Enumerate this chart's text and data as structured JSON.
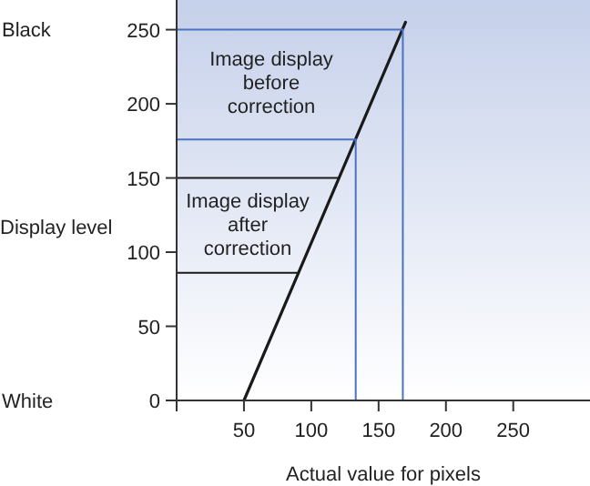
{
  "chart_data": {
    "type": "line",
    "xlabel": "Actual value for pixels",
    "ylabel": "Display level",
    "xlim": [
      0,
      307
    ],
    "ylim": [
      0,
      270
    ],
    "xticks": [
      50,
      100,
      150,
      200,
      250
    ],
    "yticks": [
      0,
      50,
      100,
      150,
      200,
      250
    ],
    "grid": false,
    "marker": "none",
    "line_style": "solid",
    "series": [
      {
        "color": "#1a1a1a",
        "x": [
          50,
          170
        ],
        "values": [
          0,
          255
        ]
      },
      {
        "color": "#4a72c0",
        "x": [
          0,
          168
        ],
        "values": [
          250,
          250
        ]
      },
      {
        "color": "#4a72c0",
        "x": [
          168,
          168
        ],
        "values": [
          0,
          250
        ]
      },
      {
        "color": "#4a72c0",
        "x": [
          0,
          133
        ],
        "values": [
          176,
          176
        ]
      },
      {
        "color": "#4a72c0",
        "x": [
          133,
          133
        ],
        "values": [
          0,
          176
        ]
      },
      {
        "color": "#1a1a1a",
        "x": [
          0,
          120
        ],
        "values": [
          150,
          150
        ]
      },
      {
        "color": "#1a1a1a",
        "x": [
          0,
          90
        ],
        "values": [
          86,
          86
        ]
      }
    ],
    "annotations": [
      "Image display\nbefore\ncorrection",
      "Image display\nafter\ncorrection",
      "Black",
      "White"
    ]
  }
}
